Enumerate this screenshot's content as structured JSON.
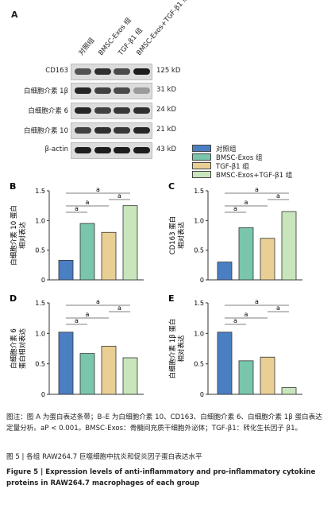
{
  "panel_a_label": "A",
  "lanes": [
    "对照组",
    "BMSC-Exos 组",
    "TGF-β1 组",
    "BMSC-Exos+TGF-β1 组"
  ],
  "blots": [
    {
      "name": "CD163",
      "kd": "125 kD",
      "intensities": [
        0.65,
        0.85,
        0.7,
        0.95
      ]
    },
    {
      "name": "白细胞介素 1β",
      "kd": "31 kD",
      "intensities": [
        0.9,
        0.75,
        0.7,
        0.25
      ]
    },
    {
      "name": "白细胞介素 6",
      "kd": "24 kD",
      "intensities": [
        0.9,
        0.75,
        0.8,
        0.85
      ]
    },
    {
      "name": "白细胞介素 10",
      "kd": "21 kD",
      "intensities": [
        0.75,
        0.85,
        0.8,
        0.9
      ]
    },
    {
      "name": "β-actin",
      "kd": "43 kD",
      "intensities": [
        0.95,
        0.95,
        0.95,
        0.95
      ]
    }
  ],
  "legend": [
    {
      "label": "对照组",
      "color": "#4a7fc4"
    },
    {
      "label": "BMSC-Exos 组",
      "color": "#79c6ad"
    },
    {
      "label": "TGF-β1 组",
      "color": "#e9cf94"
    },
    {
      "label": "BMSC-Exos+TGF-β1 组",
      "color": "#c8e5bb"
    }
  ],
  "sig_mark": "a",
  "chart_data": [
    {
      "type": "bar",
      "label": "B",
      "ylabel": "白细胞介素 10 蛋白\n相对表达",
      "ylim": [
        0,
        1.5
      ],
      "yticks": [
        0,
        0.5,
        1.0,
        1.5
      ],
      "categories": [
        "对照组",
        "BMSC-Exos 组",
        "TGF-β1 组",
        "BMSC-Exos+TGF-β1 组"
      ],
      "values": [
        0.33,
        0.95,
        0.8,
        1.25
      ]
    },
    {
      "type": "bar",
      "label": "C",
      "ylabel": "CD163 蛋白\n相对表达",
      "ylim": [
        0,
        1.5
      ],
      "yticks": [
        0,
        0.5,
        1.0,
        1.5
      ],
      "categories": [
        "对照组",
        "BMSC-Exos 组",
        "TGF-β1 组",
        "BMSC-Exos+TGF-β1 组"
      ],
      "values": [
        0.3,
        0.88,
        0.7,
        1.15
      ]
    },
    {
      "type": "bar",
      "label": "D",
      "ylabel": "白细胞介素 6\n蛋白相对表达",
      "ylim": [
        0,
        1.5
      ],
      "yticks": [
        0,
        0.5,
        1.0,
        1.5
      ],
      "categories": [
        "对照组",
        "BMSC-Exos 组",
        "TGF-β1 组",
        "BMSC-Exos+TGF-β1 组"
      ],
      "values": [
        1.02,
        0.67,
        0.79,
        0.6
      ]
    },
    {
      "type": "bar",
      "label": "E",
      "ylabel": "白细胞介素 1β 蛋白\n相对表达",
      "ylim": [
        0,
        1.5
      ],
      "yticks": [
        0,
        0.5,
        1.0,
        1.5
      ],
      "categories": [
        "对照组",
        "BMSC-Exos 组",
        "TGF-β1 组",
        "BMSC-Exos+TGF-β1 组"
      ],
      "values": [
        1.02,
        0.55,
        0.61,
        0.11
      ]
    }
  ],
  "caption_cn": "图注：图 A 为蛋白表达条带；B–E 为白细胞介素 10、CD163、白细胞介素 6、白细胞介素 1β 蛋白表达定量分析。aP < 0.001。BMSC-Exos：骨髓间充质干细胞外泌体；TGF-β1：转化生长因子 β1。",
  "figure_title_cn": "图 5  |  各组 RAW264.7 巨噬细胞中抗炎和促炎因子蛋白表达水平",
  "figure_title_en": "Figure 5  |  Expression levels of anti-inflammatory and pro-inflammatory cytokine proteins in RAW264.7 macrophages of each group"
}
